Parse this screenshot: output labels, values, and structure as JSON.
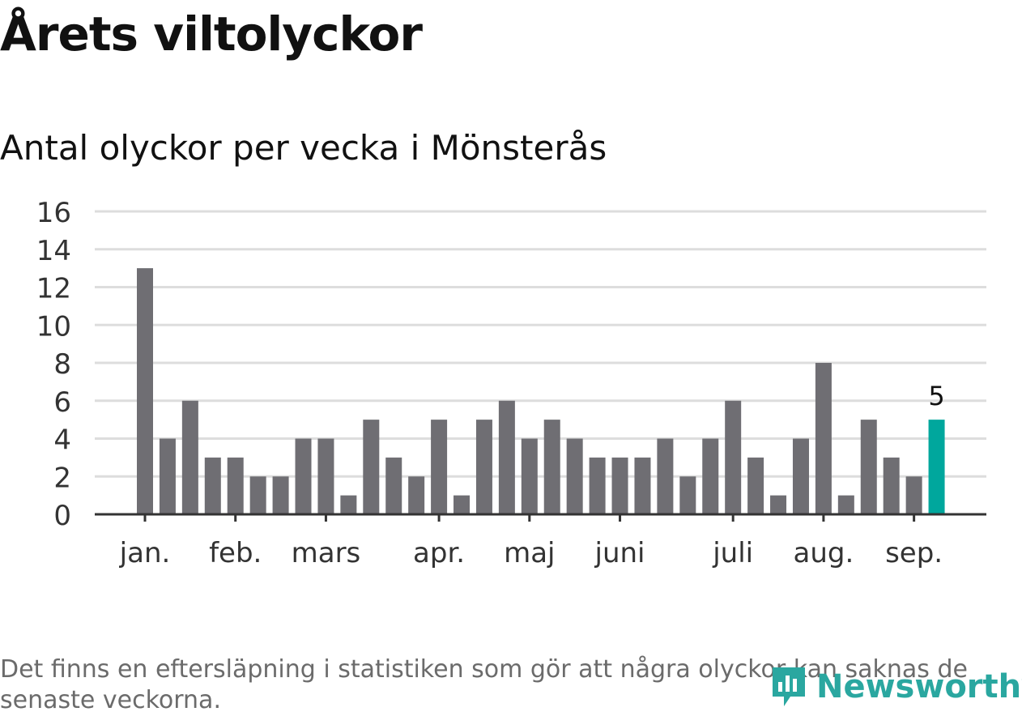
{
  "header": {
    "title": "Årets viltolyckor",
    "subtitle": "Antal olyckor per vecka i Mönsterås"
  },
  "footer": {
    "note": "Det finns en eftersläpning i statistiken som gör att några olyckor kan saknas de senaste veckorna.",
    "brand": "Newsworthy"
  },
  "colors": {
    "bar": "#6f6e73",
    "highlight": "#00a79d",
    "grid": "#dddddd",
    "axis": "#333333",
    "brand": "#2aa7a0"
  },
  "chart_data": {
    "type": "bar",
    "title": "Antal olyckor per vecka i Mönsterås",
    "xlabel": "",
    "ylabel": "",
    "ylim": [
      0,
      16
    ],
    "yticks": [
      0,
      2,
      4,
      6,
      8,
      10,
      12,
      14,
      16
    ],
    "grid": true,
    "values": [
      13,
      4,
      6,
      3,
      3,
      2,
      2,
      4,
      4,
      1,
      5,
      3,
      2,
      5,
      1,
      5,
      6,
      4,
      5,
      4,
      3,
      3,
      3,
      4,
      2,
      4,
      6,
      3,
      1,
      4,
      8,
      1,
      5,
      3,
      2,
      5
    ],
    "month_ticks": [
      {
        "label": "jan.",
        "week": 1
      },
      {
        "label": "feb.",
        "week": 5
      },
      {
        "label": "mars",
        "week": 9
      },
      {
        "label": "apr.",
        "week": 14
      },
      {
        "label": "maj",
        "week": 18
      },
      {
        "label": "juni",
        "week": 22
      },
      {
        "label": "juli",
        "week": 27
      },
      {
        "label": "aug.",
        "week": 31
      },
      {
        "label": "sep.",
        "week": 35
      }
    ],
    "highlight_index": 35,
    "highlight_label": "5"
  }
}
